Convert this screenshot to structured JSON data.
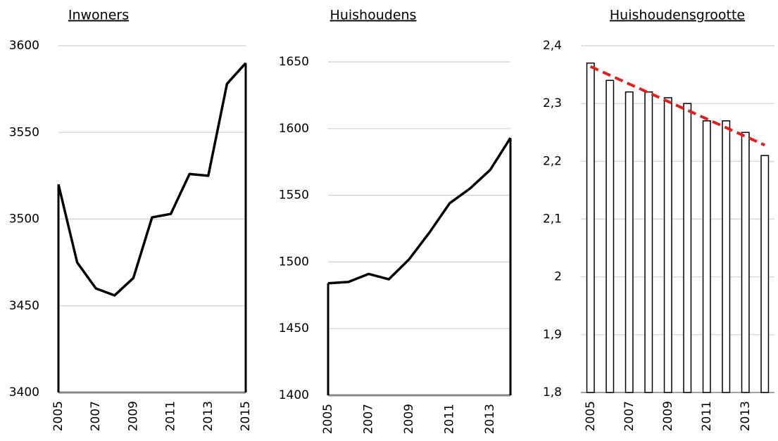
{
  "chart_data": [
    {
      "type": "line",
      "title": "Inwoners",
      "x": [
        2005,
        2006,
        2007,
        2008,
        2009,
        2010,
        2011,
        2012,
        2013,
        2014,
        2015
      ],
      "values": [
        3520,
        3475,
        3460,
        3456,
        3466,
        3501,
        3503,
        3526,
        3525,
        3578,
        3590
      ],
      "color": "#000000",
      "xlim": [
        2005,
        2015
      ],
      "xticks": [
        2005,
        2007,
        2009,
        2011,
        2013,
        2015
      ],
      "ylim": [
        3400,
        3600
      ],
      "yticks": [
        3400,
        3450,
        3500,
        3550,
        3600
      ],
      "grid": true
    },
    {
      "type": "line",
      "title": "Huishoudens",
      "x": [
        2005,
        2006,
        2007,
        2008,
        2009,
        2010,
        2011,
        2012,
        2013,
        2014
      ],
      "values": [
        1484,
        1485,
        1491,
        1487,
        1502,
        1522,
        1544,
        1555,
        1569,
        1593
      ],
      "color": "#000000",
      "xlim": [
        2005,
        2014
      ],
      "xticks": [
        2005,
        2007,
        2009,
        2011,
        2013
      ],
      "ylim": [
        1400,
        1650
      ],
      "yticks": [
        1400,
        1450,
        1500,
        1550,
        1600,
        1650
      ],
      "grid": true
    },
    {
      "type": "bar",
      "title": "Huishoudensgrootte",
      "categories": [
        "2005",
        null,
        "2007",
        null,
        "2009",
        null,
        "2011",
        null,
        "2013",
        null
      ],
      "values": [
        2.37,
        2.34,
        2.32,
        2.32,
        2.31,
        2.3,
        2.27,
        2.27,
        2.25,
        2.21
      ],
      "color": "#ffffff",
      "trendline": {
        "color": "#e02020",
        "values": [
          2.364,
          2.228
        ]
      },
      "ylim": [
        1.8,
        2.4
      ],
      "yticks": [
        {
          "value": 1.8,
          "label": "1,8"
        },
        {
          "value": 1.9,
          "label": "1,9"
        },
        2,
        {
          "value": 2.1,
          "label": "2,1"
        },
        {
          "value": 2.2,
          "label": "2,2"
        },
        {
          "value": 2.3,
          "label": "2,3"
        },
        {
          "value": 2.4,
          "label": "2,4"
        }
      ],
      "grid": true
    }
  ]
}
